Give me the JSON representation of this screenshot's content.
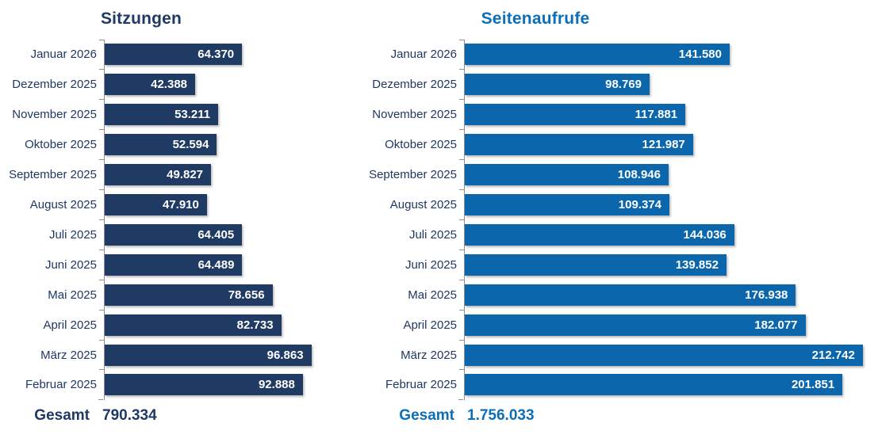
{
  "chart_data": [
    {
      "type": "bar",
      "orientation": "horizontal",
      "title": "Sitzungen",
      "title_color": "#1f3864",
      "bar_color": "#1f3a63",
      "label_color": "#1f3864",
      "categories": [
        "Januar 2026",
        "Dezember 2025",
        "November 2025",
        "Oktober 2025",
        "September 2025",
        "August 2025",
        "Juli 2025",
        "Juni 2025",
        "Mai 2025",
        "April 2025",
        "März 2025",
        "Februar 2025"
      ],
      "values": [
        64370,
        42388,
        53211,
        52594,
        49827,
        47910,
        64405,
        64489,
        78656,
        82733,
        96863,
        92888
      ],
      "value_labels": [
        "64.370",
        "42.388",
        "53.211",
        "52.594",
        "49.827",
        "47.910",
        "64.405",
        "64.489",
        "78.656",
        "82.733",
        "96.863",
        "92.888"
      ],
      "xlim": [
        0,
        100000
      ],
      "grid": false,
      "legend": false,
      "value_labels_position": "inside-end",
      "total_label": "Gesamt",
      "total_value": "790.334"
    },
    {
      "type": "bar",
      "orientation": "horizontal",
      "title": "Seitenaufrufe",
      "title_color": "#0d6eb8",
      "bar_color": "#0b66ac",
      "label_color": "#1f3864",
      "categories": [
        "Januar 2026",
        "Dezember 2025",
        "November 2025",
        "Oktober 2025",
        "September 2025",
        "August 2025",
        "Juli 2025",
        "Juni 2025",
        "Mai 2025",
        "April 2025",
        "März 2025",
        "Februar 2025"
      ],
      "values": [
        141580,
        98769,
        117881,
        121987,
        108946,
        109374,
        144036,
        139852,
        176938,
        182077,
        212742,
        201851
      ],
      "value_labels": [
        "141.580",
        "98.769",
        "117.881",
        "121.987",
        "108.946",
        "109.374",
        "144.036",
        "139.852",
        "176.938",
        "182.077",
        "212.742",
        "201.851"
      ],
      "xlim": [
        0,
        220000
      ],
      "grid": false,
      "legend": false,
      "value_labels_position": "inside-end",
      "total_label": "Gesamt",
      "total_value": "1.756.033"
    }
  ]
}
